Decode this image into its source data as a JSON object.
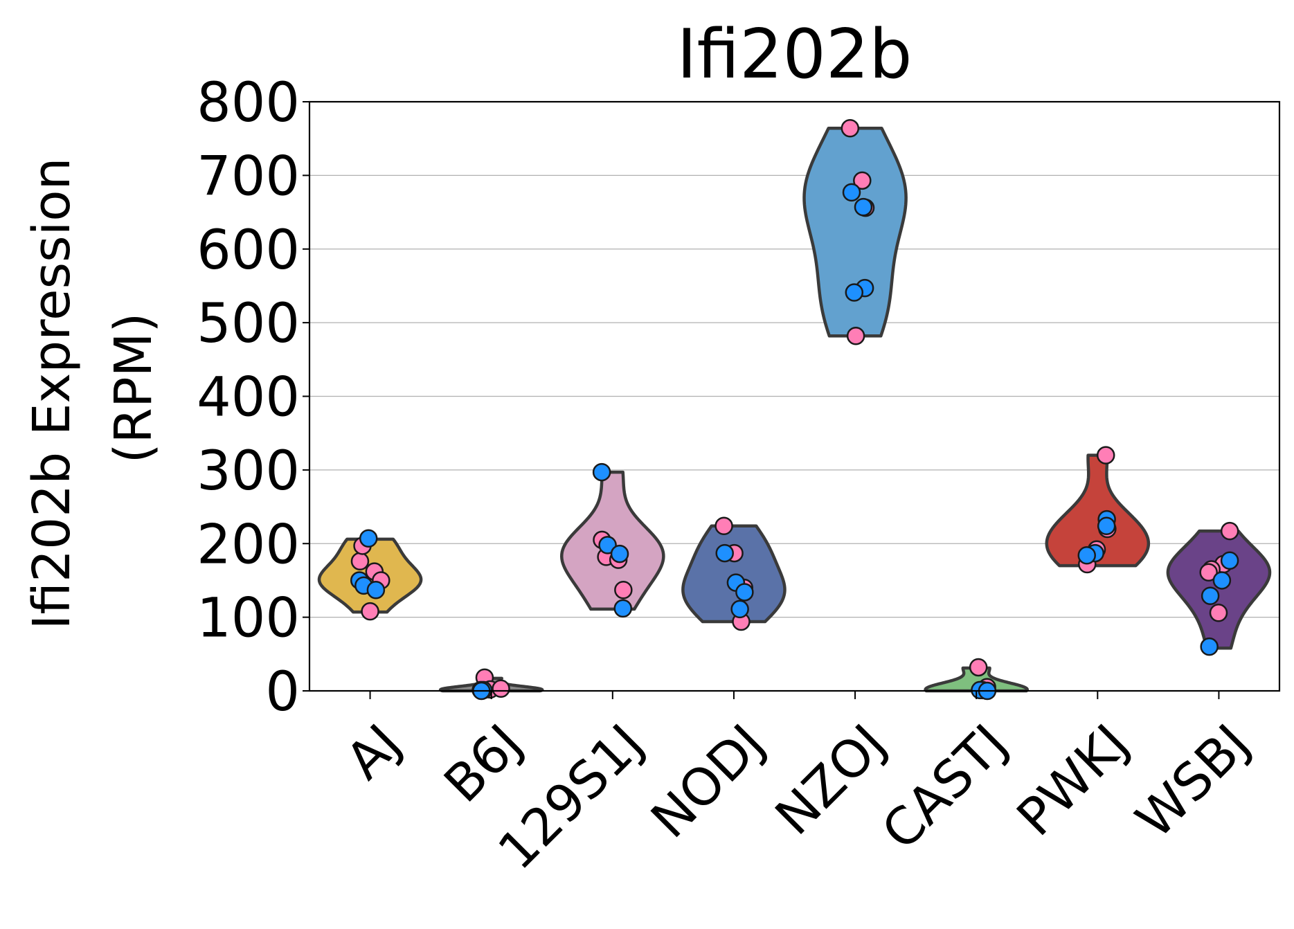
{
  "chart_data": {
    "type": "violin",
    "title": "Ifi202b",
    "ylabel_line1": "Ifi202b Expression",
    "ylabel_line2": "(RPM)",
    "ylim": [
      0,
      800
    ],
    "yticks": [
      0,
      100,
      200,
      300,
      400,
      500,
      600,
      700,
      800
    ],
    "grid": "horizontal",
    "colors": {
      "female_point": "#ff7eb6",
      "male_point": "#1e90ff",
      "outline": "#3a3a3a"
    },
    "categories": [
      "AJ",
      "B6J",
      "129S1J",
      "NODJ",
      "NZOJ",
      "CASTJ",
      "PWKJ",
      "WSBJ"
    ],
    "violins": [
      {
        "name": "AJ",
        "color": "#e0b74f",
        "min": 107,
        "max": 206,
        "female": [
          108,
          176,
          197,
          162,
          150
        ],
        "male": [
          207,
          150,
          143,
          137
        ]
      },
      {
        "name": "B6J",
        "color": "#8a8a8a",
        "min": 0,
        "max": 17,
        "female": [
          18,
          1,
          2,
          3
        ],
        "male": [
          1,
          0
        ]
      },
      {
        "name": "129S1J",
        "color": "#d4a4c2",
        "min": 111,
        "max": 297,
        "female": [
          205,
          182,
          178,
          137
        ],
        "male": [
          297,
          198,
          186,
          112
        ]
      },
      {
        "name": "NODJ",
        "color": "#5a72a8",
        "min": 94,
        "max": 224,
        "female": [
          224,
          187,
          140,
          94
        ],
        "male": [
          187,
          147,
          134,
          111
        ]
      },
      {
        "name": "NZOJ",
        "color": "#62a1cf",
        "min": 482,
        "max": 764,
        "female": [
          764,
          693,
          656,
          482
        ],
        "male": [
          677,
          657,
          547,
          541
        ]
      },
      {
        "name": "CASTJ",
        "color": "#7fbf7f",
        "min": 0,
        "max": 31,
        "female": [
          32,
          5,
          1
        ],
        "male": [
          1,
          0
        ]
      },
      {
        "name": "PWKJ",
        "color": "#c5433b",
        "min": 170,
        "max": 320,
        "female": [
          320,
          220,
          192,
          172
        ],
        "male": [
          233,
          224,
          187,
          184
        ]
      },
      {
        "name": "WSBJ",
        "color": "#6a4388",
        "min": 58,
        "max": 217,
        "female": [
          217,
          172,
          165,
          161,
          106
        ],
        "male": [
          177,
          150,
          129,
          60
        ]
      }
    ]
  }
}
